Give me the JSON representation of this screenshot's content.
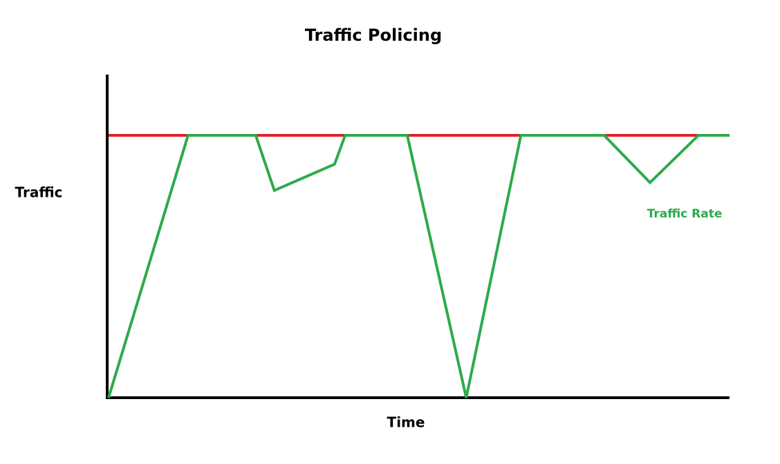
{
  "chart_data": {
    "type": "line",
    "title": "Traffic Policing",
    "x_label": "Time",
    "y_label": "Traffic",
    "xlim": [
      0,
      100
    ],
    "ylim": [
      0,
      123
    ],
    "series": [
      {
        "color": "#e0202a",
        "x": [
          0,
          95
        ],
        "values": [
          100,
          100
        ]
      },
      {
        "name": "Traffic Rate",
        "color": "#2eaa4a",
        "x": [
          0,
          12.8,
          23.7,
          26.7,
          36.4,
          38.1,
          48.1,
          57.6,
          66.4,
          79.8,
          87.2,
          95,
          100
        ],
        "values": [
          0,
          100,
          100,
          79,
          89,
          100,
          100,
          0,
          100,
          100,
          82,
          100,
          100
        ]
      }
    ]
  }
}
